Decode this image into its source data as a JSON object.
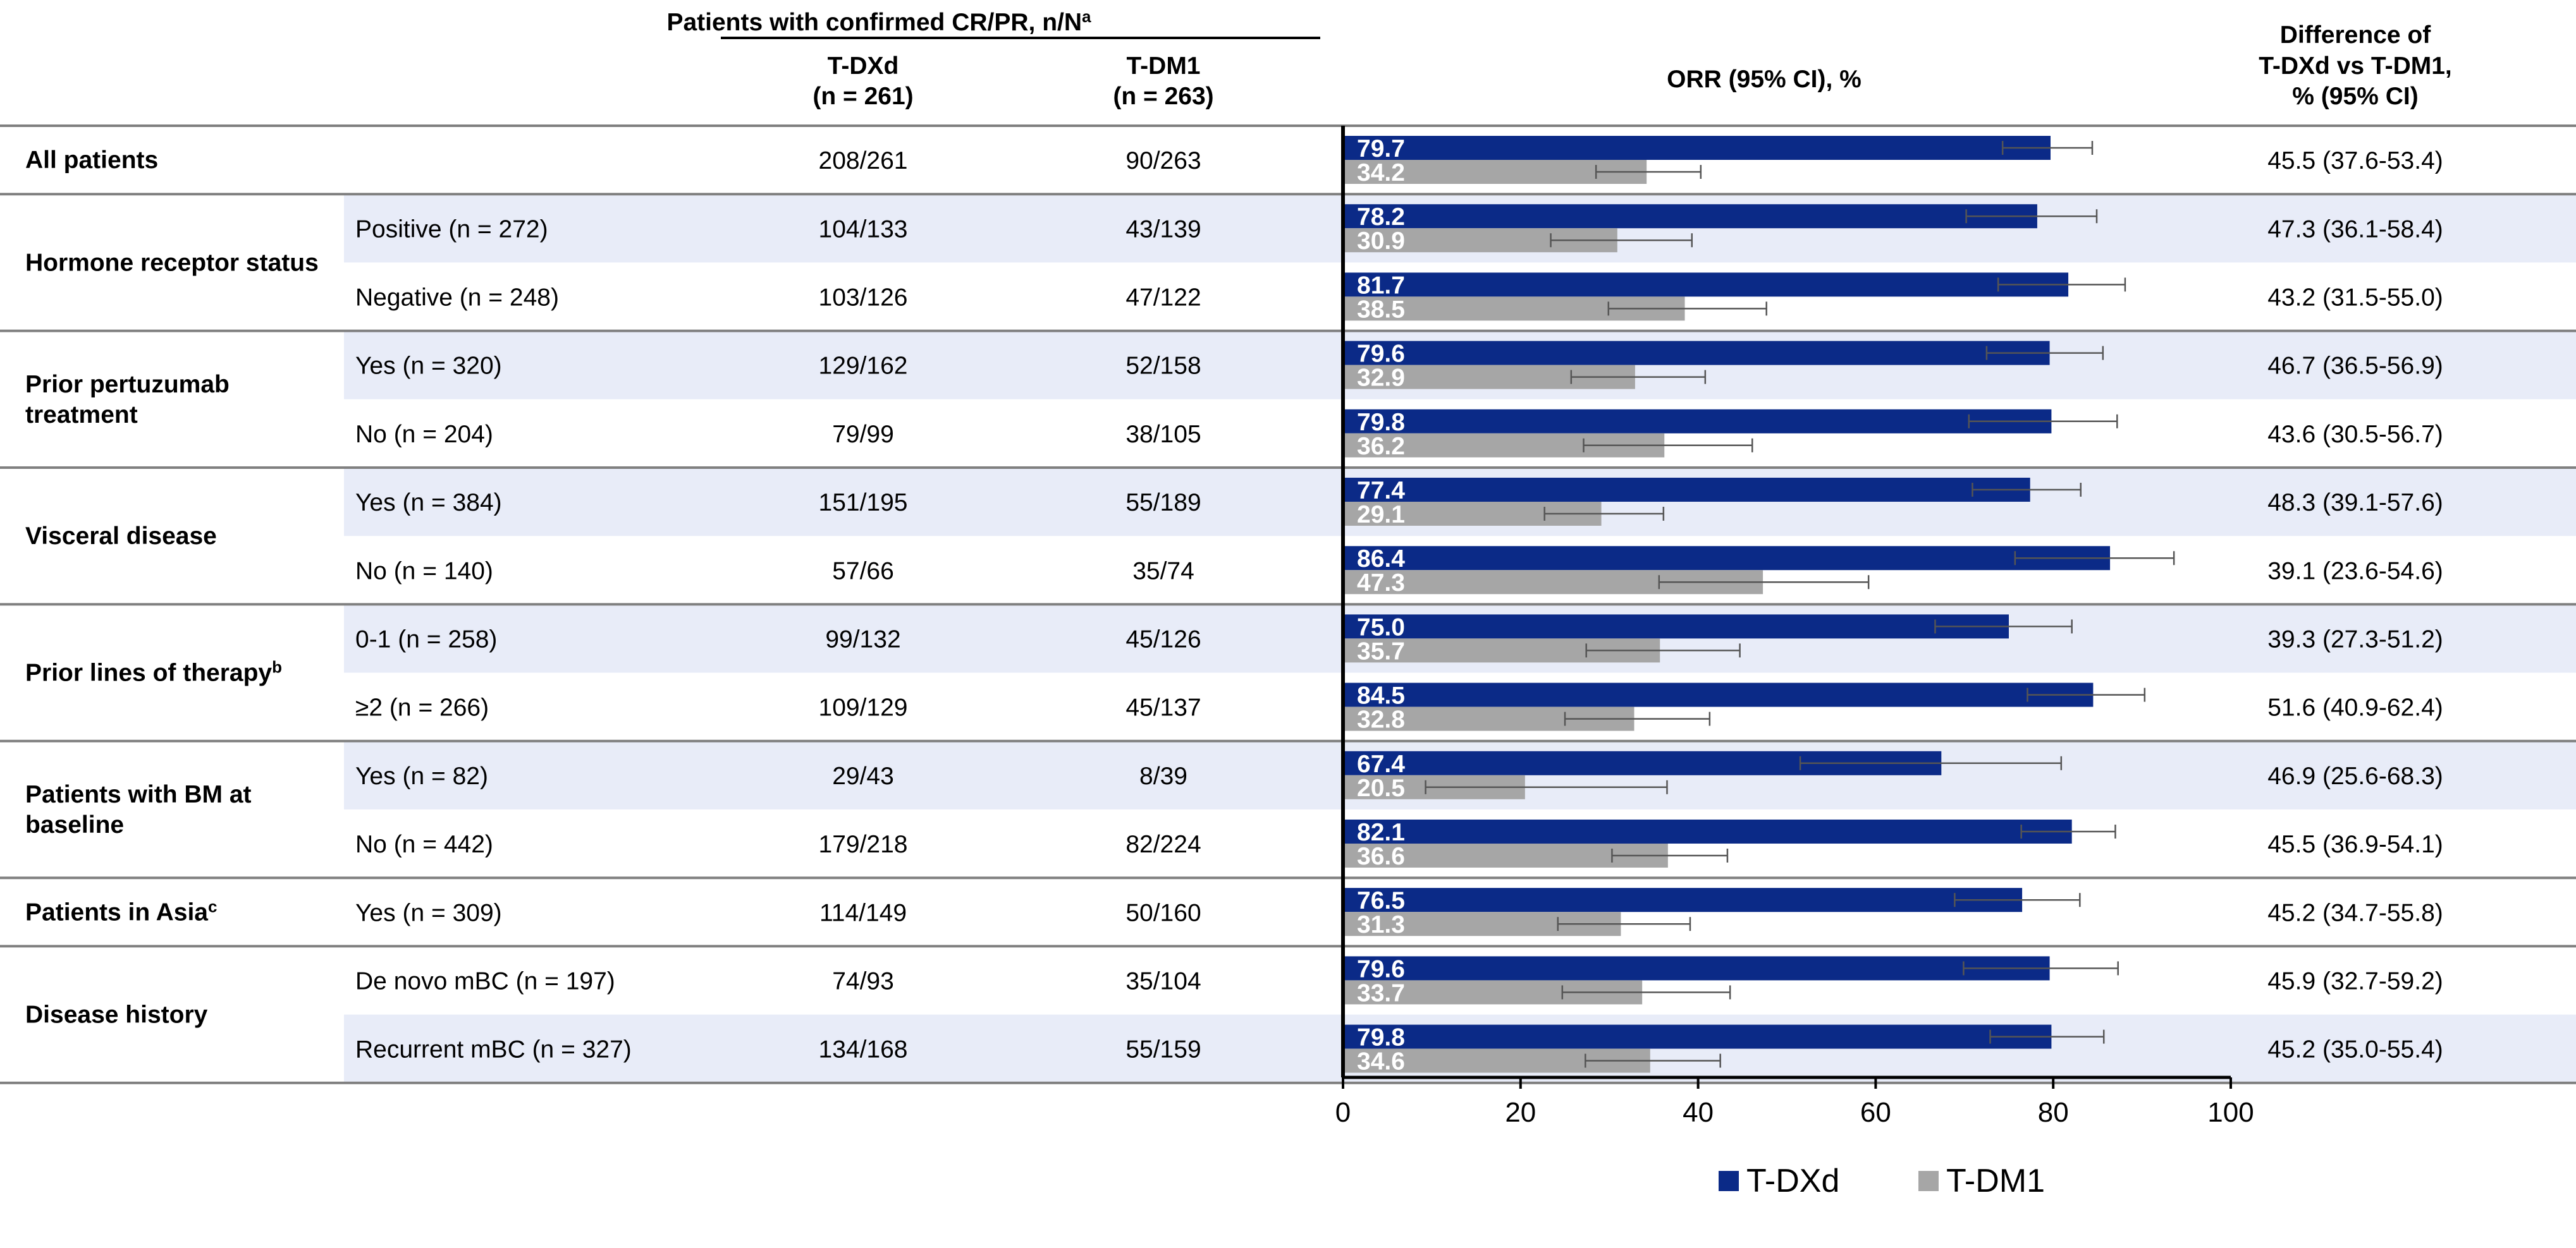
{
  "header": {
    "patients_title_main": "Patients with confirmed CR/PR, n/N",
    "patients_title_sup": "a",
    "tdxd_name": "T-DXd",
    "tdxd_n": "(n = 261)",
    "tdm1_name": "T-DM1",
    "tdm1_n": "(n = 263)",
    "orr_title": "ORR (95% CI), %",
    "diff_title_lines": [
      "Difference of",
      "T-DXd vs T-DM1,",
      "% (95% CI)"
    ]
  },
  "groups": [
    {
      "label_lines": [
        "All patients"
      ],
      "sup": "",
      "rows": 1,
      "start": 0
    },
    {
      "label_lines": [
        "Hormone receptor status"
      ],
      "sup": "",
      "rows": 2,
      "start": 1
    },
    {
      "label_lines": [
        "Prior pertuzumab",
        "treatment"
      ],
      "sup": "",
      "rows": 2,
      "start": 3
    },
    {
      "label_lines": [
        "Visceral disease"
      ],
      "sup": "",
      "rows": 2,
      "start": 5
    },
    {
      "label_lines": [
        "Prior lines of therapy"
      ],
      "sup": "b",
      "rows": 2,
      "start": 7
    },
    {
      "label_lines": [
        "Patients with BM at",
        "baseline"
      ],
      "sup": "",
      "rows": 2,
      "start": 9
    },
    {
      "label_lines": [
        "Patients in Asia"
      ],
      "sup": "c",
      "rows": 1,
      "start": 11
    },
    {
      "label_lines": [
        "Disease history"
      ],
      "sup": "",
      "rows": 2,
      "start": 12
    }
  ],
  "rows": [
    {
      "sub": "",
      "tdxd": "208/261",
      "tdm1": "90/263",
      "diff": "45.5 (37.6-53.4)",
      "shaded": false
    },
    {
      "sub": "Positive (n = 272)",
      "tdxd": "104/133",
      "tdm1": "43/139",
      "diff": "47.3 (36.1-58.4)",
      "shaded": true
    },
    {
      "sub": "Negative (n = 248)",
      "tdxd": "103/126",
      "tdm1": "47/122",
      "diff": "43.2 (31.5-55.0)",
      "shaded": false
    },
    {
      "sub": "Yes (n = 320)",
      "tdxd": "129/162",
      "tdm1": "52/158",
      "diff": "46.7 (36.5-56.9)",
      "shaded": true
    },
    {
      "sub": "No (n = 204)",
      "tdxd": "79/99",
      "tdm1": "38/105",
      "diff": "43.6 (30.5-56.7)",
      "shaded": false
    },
    {
      "sub": "Yes (n = 384)",
      "tdxd": "151/195",
      "tdm1": "55/189",
      "diff": "48.3 (39.1-57.6)",
      "shaded": true
    },
    {
      "sub": "No (n = 140)",
      "tdxd": "57/66",
      "tdm1": "35/74",
      "diff": "39.1 (23.6-54.6)",
      "shaded": false
    },
    {
      "sub": "0-1 (n = 258)",
      "tdxd": "99/132",
      "tdm1": "45/126",
      "diff": "39.3 (27.3-51.2)",
      "shaded": true
    },
    {
      "sub": "≥2 (n = 266)",
      "tdxd": "109/129",
      "tdm1": "45/137",
      "diff": "51.6 (40.9-62.4)",
      "shaded": false
    },
    {
      "sub": "Yes (n = 82)",
      "tdxd": "29/43",
      "tdm1": "8/39",
      "diff": "46.9 (25.6-68.3)",
      "shaded": true
    },
    {
      "sub": "No (n = 442)",
      "tdxd": "179/218",
      "tdm1": "82/224",
      "diff": "45.5 (36.9-54.1)",
      "shaded": false
    },
    {
      "sub": "Yes (n = 309)",
      "tdxd": "114/149",
      "tdm1": "50/160",
      "diff": "45.2 (34.7-55.8)",
      "shaded": false
    },
    {
      "sub": "De novo mBC (n = 197)",
      "tdxd": "74/93",
      "tdm1": "35/104",
      "diff": "45.9 (32.7-59.2)",
      "shaded": false
    },
    {
      "sub": "Recurrent mBC (n = 327)",
      "tdxd": "134/168",
      "tdm1": "55/159",
      "diff": "45.2 (35.0-55.4)",
      "shaded": true
    }
  ],
  "chart_data": {
    "type": "bar",
    "orientation": "horizontal",
    "title": "ORR (95% CI), %",
    "xlim": [
      0,
      100
    ],
    "xticks": [
      0,
      20,
      40,
      60,
      80,
      100
    ],
    "grid": false,
    "legend_placement": "bottom",
    "series": [
      {
        "name": "T-DXd",
        "color": "#0b2a87",
        "values": [
          79.7,
          78.2,
          81.7,
          79.6,
          79.8,
          77.4,
          86.4,
          75.0,
          84.5,
          67.4,
          82.1,
          76.5,
          79.6,
          79.8
        ],
        "labels": [
          "79.7",
          "78.2",
          "81.7",
          "79.6",
          "79.8",
          "77.4",
          "86.4",
          "75.0",
          "84.5",
          "67.4",
          "82.1",
          "76.5",
          "79.6",
          "79.8"
        ],
        "ci_low": [
          74.3,
          70.2,
          73.8,
          72.5,
          70.5,
          70.9,
          75.7,
          66.7,
          77.1,
          51.5,
          76.4,
          68.9,
          69.9,
          72.9
        ],
        "ci_high": [
          84.4,
          84.9,
          88.1,
          85.6,
          87.2,
          83.1,
          93.6,
          82.1,
          90.3,
          80.9,
          87.0,
          83.0,
          87.3,
          85.7
        ]
      },
      {
        "name": "T-DM1",
        "color": "#a6a6a6",
        "values": [
          34.2,
          30.9,
          38.5,
          32.9,
          36.2,
          29.1,
          47.3,
          35.7,
          32.8,
          20.5,
          36.6,
          31.3,
          33.7,
          34.6
        ],
        "labels": [
          "34.2",
          "30.9",
          "38.5",
          "32.9",
          "36.2",
          "29.1",
          "47.3",
          "35.7",
          "32.8",
          "20.5",
          "36.6",
          "31.3",
          "33.7",
          "34.6"
        ],
        "ci_low": [
          28.5,
          23.4,
          29.9,
          25.7,
          27.1,
          22.7,
          35.6,
          27.4,
          25.0,
          9.3,
          30.3,
          24.2,
          24.7,
          27.3
        ],
        "ci_high": [
          40.3,
          39.3,
          47.7,
          40.8,
          46.1,
          36.1,
          59.2,
          44.7,
          41.3,
          36.5,
          43.3,
          39.1,
          43.6,
          42.5
        ]
      }
    ]
  }
}
